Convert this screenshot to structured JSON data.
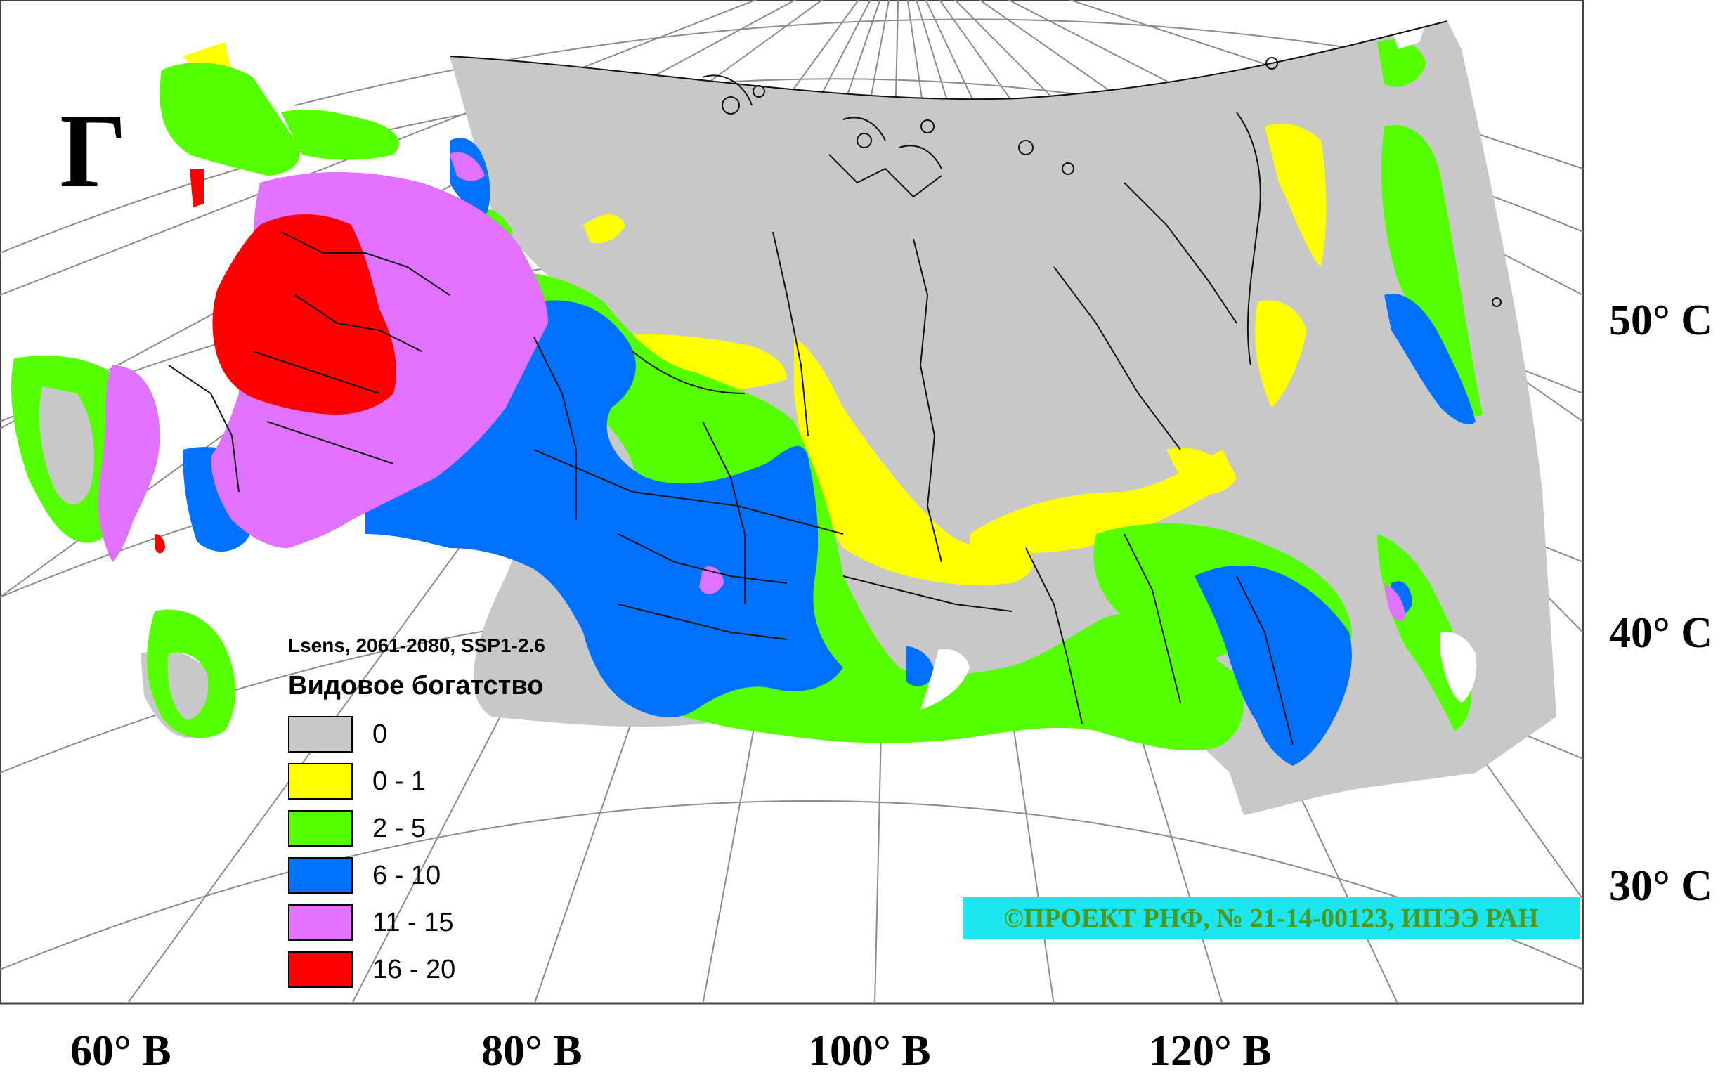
{
  "panel_letter": "Г",
  "legend": {
    "scenario": "Lsens, 2061-2080, SSP1-2.6",
    "title": "Видовое богатство",
    "items": [
      {
        "label": "0",
        "color": "#c8c8c8"
      },
      {
        "label": "0 - 1",
        "color": "#ffff00"
      },
      {
        "label": "2 - 5",
        "color": "#55ff00"
      },
      {
        "label": "6 - 10",
        "color": "#0070ff"
      },
      {
        "label": "11 - 15",
        "color": "#df73ff"
      },
      {
        "label": "16 - 20",
        "color": "#ff0000"
      }
    ]
  },
  "longitude_labels": [
    "60° В",
    "80° В",
    "100° В",
    "120° В"
  ],
  "latitude_labels": [
    "50° С",
    "40° С",
    "30° С"
  ],
  "credit": "©ПРОЕКТ РНФ, № 21-14-00123, ИПЭЭ РАН"
}
